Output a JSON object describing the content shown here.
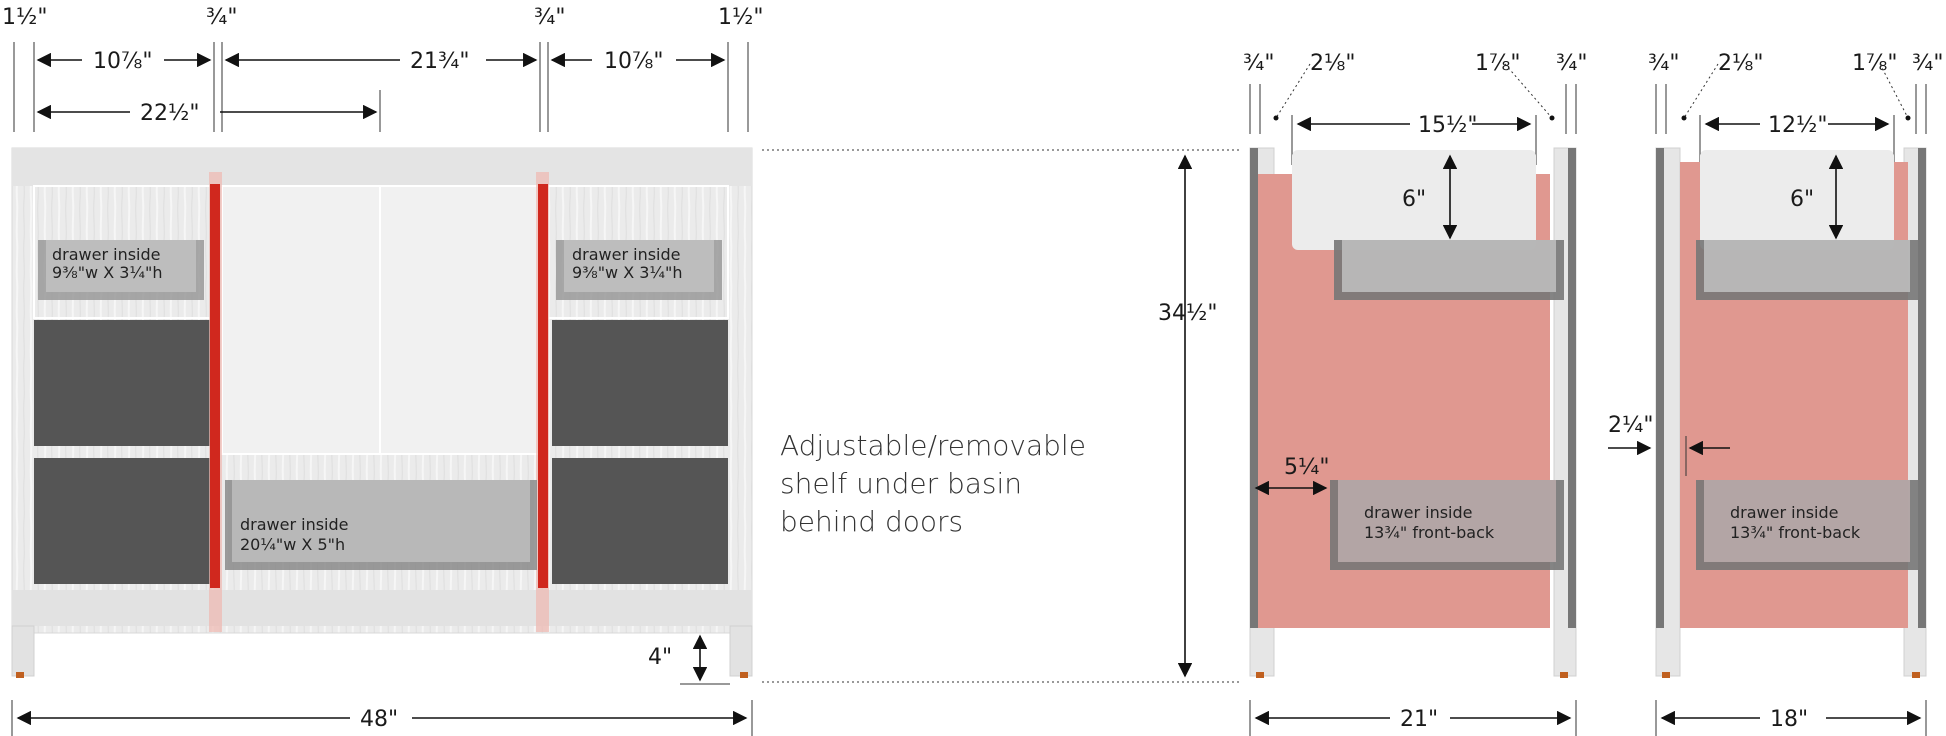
{
  "front": {
    "dims": {
      "side_left": "1½\"",
      "side_right": "1½\"",
      "divider_left": "¾\"",
      "divider_right": "¾\"",
      "bay_left": "10⅞\"",
      "bay_center": "21¾\"",
      "bay_right": "10⅞\"",
      "half_width": "22½\"",
      "total_width": "48\"",
      "toe_kick": "4\""
    },
    "drawers": {
      "top_left": [
        "drawer inside",
        "9⅜\"w X 3¼\"h"
      ],
      "top_right": [
        "drawer inside",
        "9⅜\"w X 3¼\"h"
      ],
      "bottom_center": [
        "drawer inside",
        "20¼\"w X 5\"h"
      ]
    }
  },
  "height": "34½\"",
  "note": [
    "Adjustable/removable",
    "shelf under basin",
    "behind doors"
  ],
  "side_21": {
    "dims": {
      "left_panel": "¾\"",
      "left_offset": "2⅛\"",
      "right_offset": "1⅞\"",
      "right_panel": "¾\"",
      "inner_width": "15½\"",
      "notch_depth": "6\"",
      "gap": "5¼\"",
      "total_depth": "21\""
    },
    "drawer": [
      "drawer inside",
      "13¾\" front-back"
    ]
  },
  "side_18": {
    "dims": {
      "left_panel": "¾\"",
      "left_offset": "2⅛\"",
      "right_offset": "1⅞\"",
      "right_panel": "¾\"",
      "inner_width": "12½\"",
      "notch_depth": "6\"",
      "gap": "2¼\"",
      "total_depth": "18\""
    },
    "drawer": [
      "drawer inside",
      "13¾\" front-back"
    ]
  },
  "colors": {
    "wood": "#e6e6e6",
    "drawer_dark": "#555555",
    "divider_red": "#d0281e",
    "side_panel_pink": "#e09890"
  }
}
